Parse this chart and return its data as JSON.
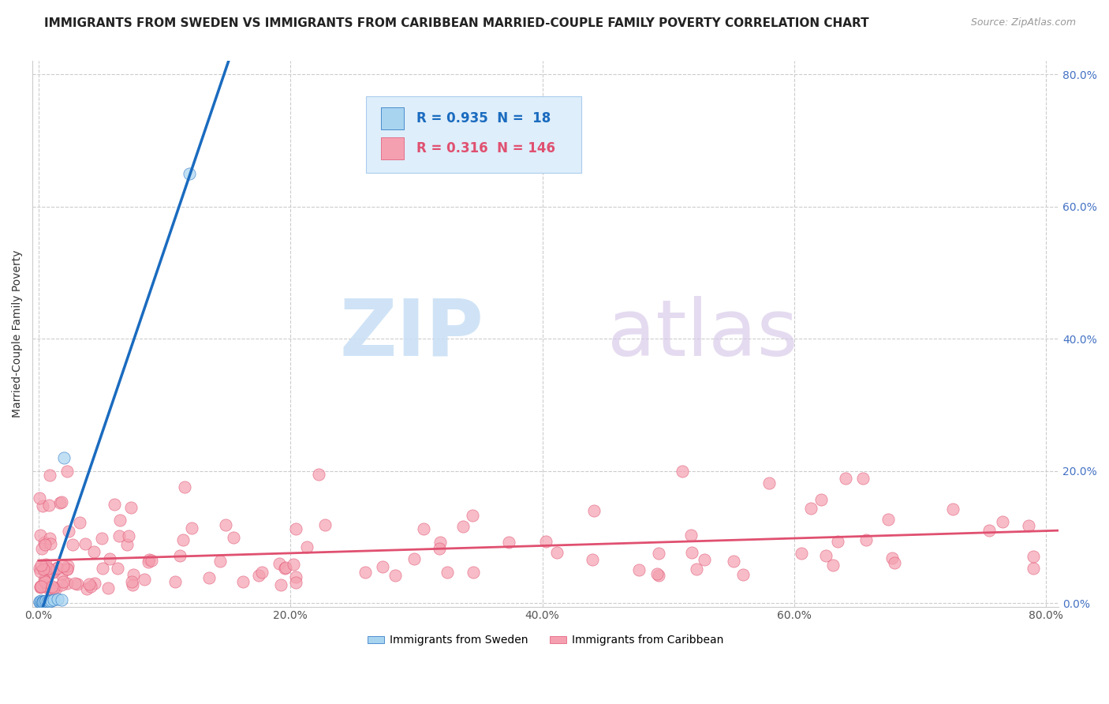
{
  "title": "IMMIGRANTS FROM SWEDEN VS IMMIGRANTS FROM CARIBBEAN MARRIED-COUPLE FAMILY POVERTY CORRELATION CHART",
  "source": "Source: ZipAtlas.com",
  "xlabel_sweden": "Immigrants from Sweden",
  "xlabel_caribbean": "Immigrants from Caribbean",
  "ylabel": "Married-Couple Family Poverty",
  "sweden_R": 0.935,
  "sweden_N": 18,
  "caribbean_R": 0.316,
  "caribbean_N": 146,
  "sweden_color": "#a8d4f0",
  "caribbean_color": "#f4a0b0",
  "sweden_line_color": "#1a6bbf",
  "caribbean_line_color": "#e05070",
  "background_color": "#ffffff",
  "xmin": 0.0,
  "xmax": 0.8,
  "ymin": 0.0,
  "ymax": 0.82,
  "ytick_vals": [
    0.0,
    0.2,
    0.4,
    0.6,
    0.8
  ],
  "ytick_labels": [
    "0.0%",
    "20.0%",
    "40.0%",
    "60.0%",
    "80.0%"
  ],
  "xtick_vals": [
    0.0,
    0.2,
    0.4,
    0.6,
    0.8
  ],
  "xtick_labels": [
    "0.0%",
    "20.0%",
    "40.0%",
    "60.0%",
    "80.0%"
  ],
  "grid_color": "#cccccc",
  "title_fontsize": 11,
  "axis_label_fontsize": 10
}
